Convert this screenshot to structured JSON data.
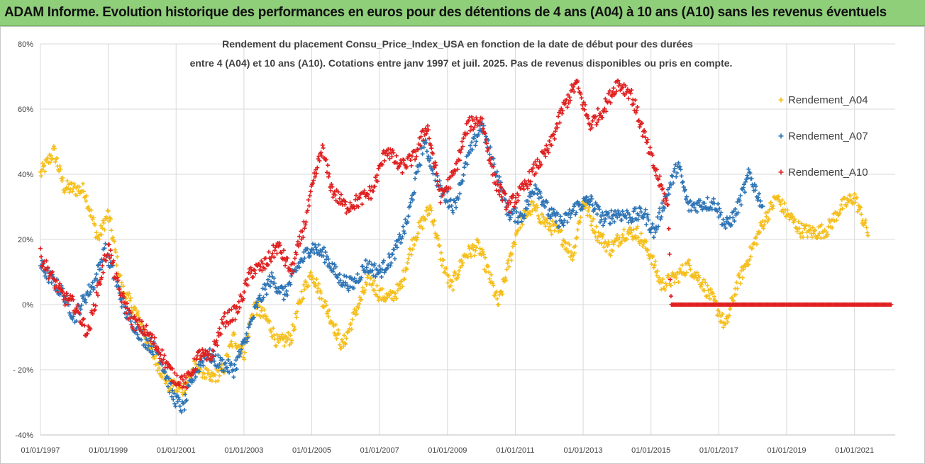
{
  "header": {
    "title": "ADAM Informe. Evolution historique des performances en euros pour des détentions de 4 ans (A04) à 10 ans (A10) sans les revenus éventuels"
  },
  "chart_data": {
    "type": "scatter",
    "title_lines": [
      "Rendement du placement Consu_Price_Index_USA en fonction de la date de début pour des durées",
      "entre 4 (A04) et 10 ans (A10). Cotations entre janv 1997 et juil. 2025. Pas de revenus disponibles ou pris en compte."
    ],
    "xlabel": "",
    "ylabel": "",
    "ylim": [
      -0.4,
      0.8
    ],
    "xlim": [
      1997.0,
      2022.2
    ],
    "y_ticks": [
      {
        "v": 0.8,
        "label": "80%"
      },
      {
        "v": 0.6,
        "label": "60%"
      },
      {
        "v": 0.4,
        "label": "40%"
      },
      {
        "v": 0.2,
        "label": "20%"
      },
      {
        "v": 0.0,
        "label": "0%"
      },
      {
        "v": -0.2,
        "label": "- 20%"
      },
      {
        "v": -0.4,
        "label": "-40%"
      }
    ],
    "x_ticks": [
      {
        "v": 1997,
        "label": "01/01/1997"
      },
      {
        "v": 1999,
        "label": "01/01/1999"
      },
      {
        "v": 2001,
        "label": "01/01/2001"
      },
      {
        "v": 2003,
        "label": "01/01/2003"
      },
      {
        "v": 2005,
        "label": "01/01/2005"
      },
      {
        "v": 2007,
        "label": "01/01/2007"
      },
      {
        "v": 2009,
        "label": "01/01/2009"
      },
      {
        "v": 2011,
        "label": "01/01/2011"
      },
      {
        "v": 2013,
        "label": "01/01/2013"
      },
      {
        "v": 2015,
        "label": "01/01/2015"
      },
      {
        "v": 2017,
        "label": "01/01/2017"
      },
      {
        "v": 2019,
        "label": "01/01/2019"
      },
      {
        "v": 2021,
        "label": "01/01/2021"
      }
    ],
    "grid": true,
    "legend_position": "right",
    "series": [
      {
        "name": "Rendement_A04",
        "color": "#f5bf1d",
        "anchors": [
          [
            1997.0,
            0.4
          ],
          [
            1997.4,
            0.47
          ],
          [
            1997.7,
            0.36
          ],
          [
            1998.3,
            0.35
          ],
          [
            1998.7,
            0.2
          ],
          [
            1999.0,
            0.28
          ],
          [
            1999.4,
            0.05
          ],
          [
            1999.8,
            -0.02
          ],
          [
            2000.3,
            -0.15
          ],
          [
            2000.8,
            -0.25
          ],
          [
            2001.2,
            -0.26
          ],
          [
            2001.6,
            -0.18
          ],
          [
            2002.0,
            -0.23
          ],
          [
            2002.4,
            -0.2
          ],
          [
            2002.7,
            -0.1
          ],
          [
            2003.0,
            -0.15
          ],
          [
            2003.3,
            0.0
          ],
          [
            2003.7,
            -0.05
          ],
          [
            2004.0,
            -0.12
          ],
          [
            2004.4,
            -0.1
          ],
          [
            2004.7,
            0.03
          ],
          [
            2005.0,
            0.1
          ],
          [
            2005.3,
            0.02
          ],
          [
            2005.6,
            -0.05
          ],
          [
            2005.9,
            -0.13
          ],
          [
            2006.3,
            -0.02
          ],
          [
            2006.7,
            0.08
          ],
          [
            2007.0,
            0.03
          ],
          [
            2007.3,
            0.02
          ],
          [
            2007.6,
            0.05
          ],
          [
            2008.0,
            0.2
          ],
          [
            2008.5,
            0.3
          ],
          [
            2008.8,
            0.15
          ],
          [
            2009.1,
            0.05
          ],
          [
            2009.5,
            0.15
          ],
          [
            2009.9,
            0.18
          ],
          [
            2010.2,
            0.1
          ],
          [
            2010.5,
            0.0
          ],
          [
            2010.8,
            0.12
          ],
          [
            2011.1,
            0.25
          ],
          [
            2011.5,
            0.3
          ],
          [
            2011.9,
            0.25
          ],
          [
            2012.3,
            0.22
          ],
          [
            2012.7,
            0.15
          ],
          [
            2013.0,
            0.32
          ],
          [
            2013.4,
            0.22
          ],
          [
            2013.8,
            0.17
          ],
          [
            2014.2,
            0.22
          ],
          [
            2014.6,
            0.22
          ],
          [
            2015.0,
            0.15
          ],
          [
            2015.3,
            0.06
          ],
          [
            2015.7,
            0.08
          ],
          [
            2016.1,
            0.12
          ],
          [
            2016.5,
            0.07
          ],
          [
            2016.9,
            0.0
          ],
          [
            2017.2,
            -0.07
          ],
          [
            2017.5,
            0.05
          ],
          [
            2017.9,
            0.15
          ],
          [
            2018.3,
            0.25
          ],
          [
            2018.7,
            0.33
          ],
          [
            2019.0,
            0.28
          ],
          [
            2019.4,
            0.23
          ],
          [
            2019.8,
            0.22
          ],
          [
            2020.2,
            0.23
          ],
          [
            2020.6,
            0.3
          ],
          [
            2021.0,
            0.33
          ],
          [
            2021.4,
            0.22
          ]
        ]
      },
      {
        "name": "Rendement_A07",
        "color": "#2e75b6",
        "anchors": [
          [
            1997.0,
            0.12
          ],
          [
            1997.3,
            0.08
          ],
          [
            1997.7,
            0.03
          ],
          [
            1998.0,
            -0.04
          ],
          [
            1998.3,
            0.02
          ],
          [
            1998.6,
            0.07
          ],
          [
            1998.9,
            0.17
          ],
          [
            1999.2,
            0.08
          ],
          [
            1999.5,
            -0.02
          ],
          [
            2000.0,
            -0.1
          ],
          [
            2000.5,
            -0.15
          ],
          [
            2000.9,
            -0.28
          ],
          [
            2001.2,
            -0.32
          ],
          [
            2001.5,
            -0.22
          ],
          [
            2001.9,
            -0.15
          ],
          [
            2002.3,
            -0.18
          ],
          [
            2002.7,
            -0.2
          ],
          [
            2003.0,
            -0.12
          ],
          [
            2003.4,
            0.0
          ],
          [
            2003.8,
            0.08
          ],
          [
            2004.2,
            0.03
          ],
          [
            2004.6,
            0.12
          ],
          [
            2005.0,
            0.18
          ],
          [
            2005.4,
            0.15
          ],
          [
            2005.8,
            0.08
          ],
          [
            2006.2,
            0.06
          ],
          [
            2006.6,
            0.12
          ],
          [
            2007.0,
            0.1
          ],
          [
            2007.4,
            0.15
          ],
          [
            2007.8,
            0.25
          ],
          [
            2008.3,
            0.5
          ],
          [
            2008.8,
            0.35
          ],
          [
            2009.2,
            0.3
          ],
          [
            2009.6,
            0.45
          ],
          [
            2010.0,
            0.55
          ],
          [
            2010.4,
            0.42
          ],
          [
            2010.8,
            0.28
          ],
          [
            2011.2,
            0.27
          ],
          [
            2011.6,
            0.37
          ],
          [
            2012.0,
            0.28
          ],
          [
            2012.4,
            0.25
          ],
          [
            2012.8,
            0.3
          ],
          [
            2013.2,
            0.32
          ],
          [
            2013.6,
            0.26
          ],
          [
            2014.0,
            0.28
          ],
          [
            2014.4,
            0.27
          ],
          [
            2014.8,
            0.28
          ],
          [
            2015.1,
            0.22
          ],
          [
            2015.4,
            0.32
          ],
          [
            2015.8,
            0.43
          ],
          [
            2016.1,
            0.3
          ],
          [
            2016.5,
            0.31
          ],
          [
            2016.9,
            0.31
          ],
          [
            2017.2,
            0.24
          ],
          [
            2017.5,
            0.28
          ],
          [
            2017.9,
            0.4
          ],
          [
            2018.3,
            0.3
          ]
        ]
      },
      {
        "name": "Rendement_A10",
        "color": "#e02020",
        "anchors": [
          [
            1997.0,
            0.15
          ],
          [
            1997.3,
            0.09
          ],
          [
            1997.7,
            0.02
          ],
          [
            1998.0,
            0.0
          ],
          [
            1998.4,
            -0.09
          ],
          [
            1998.7,
            0.05
          ],
          [
            1999.0,
            0.18
          ],
          [
            1999.3,
            0.05
          ],
          [
            1999.7,
            -0.05
          ],
          [
            2000.1,
            -0.08
          ],
          [
            2000.5,
            -0.14
          ],
          [
            2000.9,
            -0.22
          ],
          [
            2001.3,
            -0.24
          ],
          [
            2001.7,
            -0.15
          ],
          [
            2002.0,
            -0.17
          ],
          [
            2002.4,
            -0.05
          ],
          [
            2002.8,
            -0.02
          ],
          [
            2003.2,
            0.1
          ],
          [
            2003.6,
            0.12
          ],
          [
            2004.0,
            0.18
          ],
          [
            2004.4,
            0.1
          ],
          [
            2004.8,
            0.25
          ],
          [
            2005.0,
            0.35
          ],
          [
            2005.3,
            0.48
          ],
          [
            2005.6,
            0.35
          ],
          [
            2006.0,
            0.3
          ],
          [
            2006.4,
            0.32
          ],
          [
            2006.8,
            0.35
          ],
          [
            2007.2,
            0.48
          ],
          [
            2007.6,
            0.42
          ],
          [
            2008.0,
            0.45
          ],
          [
            2008.4,
            0.55
          ],
          [
            2008.8,
            0.33
          ],
          [
            2009.2,
            0.4
          ],
          [
            2009.6,
            0.55
          ],
          [
            2010.0,
            0.57
          ],
          [
            2010.4,
            0.38
          ],
          [
            2010.8,
            0.3
          ],
          [
            2011.2,
            0.35
          ],
          [
            2011.6,
            0.42
          ],
          [
            2012.0,
            0.48
          ],
          [
            2012.4,
            0.6
          ],
          [
            2012.8,
            0.68
          ],
          [
            2013.2,
            0.55
          ],
          [
            2013.6,
            0.6
          ],
          [
            2014.0,
            0.68
          ],
          [
            2014.4,
            0.65
          ],
          [
            2014.8,
            0.52
          ],
          [
            2015.1,
            0.42
          ],
          [
            2015.5,
            0.3
          ],
          [
            2015.6,
            0.0
          ]
        ],
        "flat_zero_from": 2015.6,
        "flat_zero_to": 2022.1
      }
    ]
  }
}
